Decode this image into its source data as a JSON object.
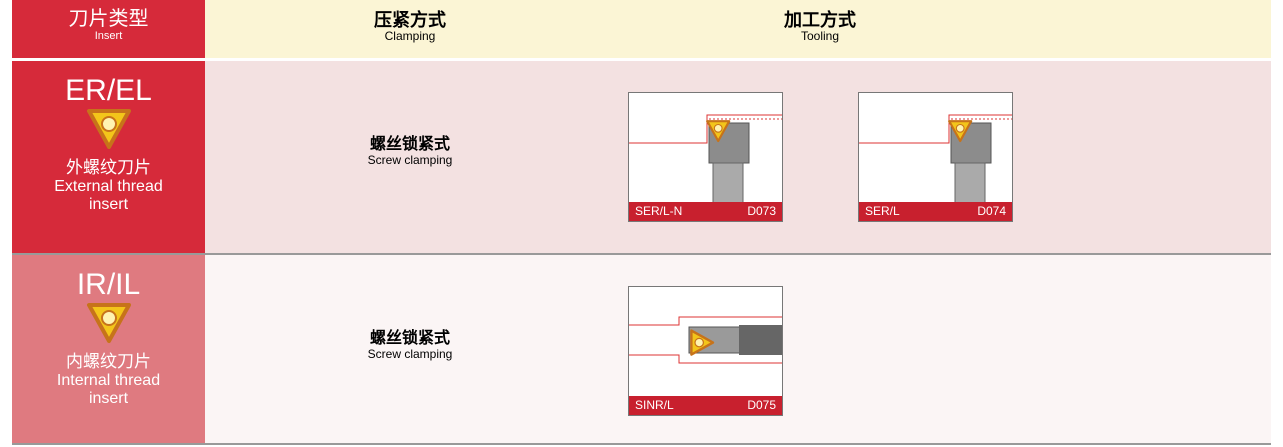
{
  "header": {
    "insert": {
      "zh": "刀片类型",
      "en": "Insert"
    },
    "clamping": {
      "zh": "压紧方式",
      "en": "Clamping"
    },
    "tooling": {
      "zh": "加工方式",
      "en": "Tooling"
    }
  },
  "rows": [
    {
      "code": "ER/EL",
      "zh": "外螺纹刀片",
      "en": [
        "External thread",
        "insert"
      ],
      "clamping": {
        "zh": "螺丝锁紧式",
        "en": "Screw clamping"
      },
      "tools": [
        {
          "name": "SER/L-N",
          "code": "D073"
        },
        {
          "name": "SER/L",
          "code": "D074"
        }
      ]
    },
    {
      "code": "IR/IL",
      "zh": "内螺纹刀片",
      "en": [
        "Internal thread",
        "insert"
      ],
      "clamping": {
        "zh": "螺丝锁紧式",
        "en": "Screw clamping"
      },
      "tools": [
        {
          "name": "SINR/L",
          "code": "D075"
        }
      ]
    }
  ]
}
